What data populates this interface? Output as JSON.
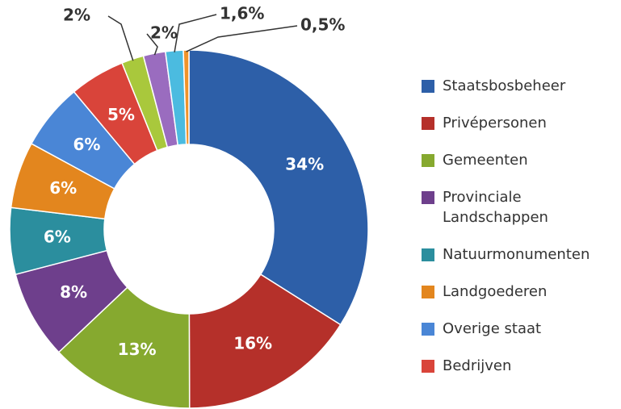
{
  "chart_data": {
    "type": "donut",
    "categories": [
      "Staatsbosbeheer",
      "Privépersonen",
      "Gemeenten",
      "Provinciale Landschappen",
      "Natuurmonumenten",
      "Landgoederen",
      "Overige staat",
      "Bedrijven",
      null,
      null,
      null,
      null
    ],
    "values": [
      34,
      16,
      13,
      8,
      6,
      6,
      6,
      5,
      2,
      2,
      1.6,
      0.5
    ],
    "value_labels": [
      "34%",
      "16%",
      "13%",
      "8%",
      "6%",
      "6%",
      "6%",
      "5%",
      "2%",
      "2%",
      "1,6%",
      "0,5%"
    ],
    "colors": [
      "#2d5fa8",
      "#b5302a",
      "#86a92f",
      "#6e3f8c",
      "#2b8e9e",
      "#e3861e",
      "#4a86d6",
      "#d9443a",
      "#a9c83c",
      "#9a6cbf",
      "#4bbbe0",
      "#f0932a"
    ]
  }
}
